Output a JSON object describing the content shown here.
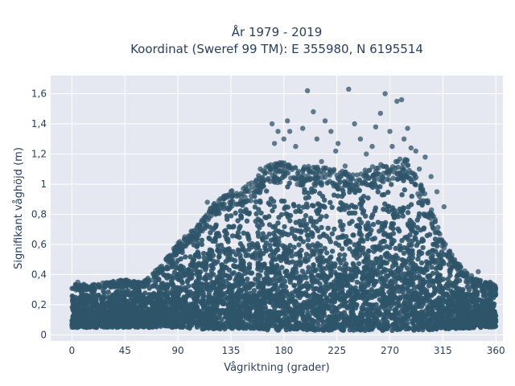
{
  "chart_data": {
    "type": "scatter",
    "title": "År 1979 - 2019",
    "subtitle": "Koordinat (Sweref 99 TM): E 355980, N 6195514",
    "xlabel": "Vågriktning (grader)",
    "ylabel": "Signifikant våghöjd (m)",
    "xlim": [
      -18,
      366
    ],
    "ylim": [
      -0.04,
      1.72
    ],
    "x_ticks": [
      0,
      45,
      90,
      135,
      180,
      225,
      270,
      315,
      360
    ],
    "x_tick_labels": [
      "0",
      "45",
      "90",
      "135",
      "180",
      "225",
      "270",
      "315",
      "360"
    ],
    "y_ticks": [
      0,
      0.2,
      0.4,
      0.6,
      0.8,
      1.0,
      1.2,
      1.4,
      1.6
    ],
    "y_tick_labels": [
      "0",
      "0,2",
      "0,4",
      "0,6",
      "0,8",
      "1",
      "1,2",
      "1,4",
      "1,6"
    ],
    "grid": true,
    "marker_color": "#2f5469",
    "background_color": "#e5e8f0",
    "envelope": {
      "x": [
        0,
        20,
        35,
        45,
        60,
        75,
        90,
        105,
        120,
        135,
        150,
        165,
        180,
        195,
        210,
        225,
        240,
        255,
        270,
        285,
        300,
        315,
        330,
        345,
        360
      ],
      "max": [
        0.33,
        0.33,
        0.35,
        0.36,
        0.34,
        0.45,
        0.6,
        0.7,
        0.85,
        0.94,
        0.97,
        1.1,
        1.13,
        1.1,
        1.1,
        1.08,
        1.05,
        1.1,
        1.13,
        1.16,
        0.92,
        0.62,
        0.45,
        0.36,
        0.33
      ],
      "min": [
        0.05,
        0.05,
        0.05,
        0.05,
        0.05,
        0.05,
        0.05,
        0.04,
        0.04,
        0.04,
        0.04,
        0.03,
        0.03,
        0.03,
        0.03,
        0.03,
        0.03,
        0.03,
        0.03,
        0.03,
        0.03,
        0.04,
        0.04,
        0.05,
        0.05
      ]
    },
    "outliers": [
      {
        "x": 170,
        "y": 1.4
      },
      {
        "x": 172,
        "y": 1.27
      },
      {
        "x": 175,
        "y": 1.35
      },
      {
        "x": 180,
        "y": 1.3
      },
      {
        "x": 183,
        "y": 1.42
      },
      {
        "x": 185,
        "y": 1.35
      },
      {
        "x": 190,
        "y": 1.25
      },
      {
        "x": 196,
        "y": 1.37
      },
      {
        "x": 200,
        "y": 1.62
      },
      {
        "x": 205,
        "y": 1.48
      },
      {
        "x": 208,
        "y": 1.3
      },
      {
        "x": 215,
        "y": 1.42
      },
      {
        "x": 220,
        "y": 1.35
      },
      {
        "x": 224,
        "y": 1.22
      },
      {
        "x": 226,
        "y": 1.27
      },
      {
        "x": 235,
        "y": 1.63
      },
      {
        "x": 240,
        "y": 1.4
      },
      {
        "x": 245,
        "y": 1.3
      },
      {
        "x": 255,
        "y": 1.25
      },
      {
        "x": 258,
        "y": 1.38
      },
      {
        "x": 262,
        "y": 1.47
      },
      {
        "x": 266,
        "y": 1.6
      },
      {
        "x": 270,
        "y": 1.35
      },
      {
        "x": 272,
        "y": 1.25
      },
      {
        "x": 276,
        "y": 1.55
      },
      {
        "x": 280,
        "y": 1.56
      },
      {
        "x": 282,
        "y": 1.3
      },
      {
        "x": 285,
        "y": 1.37
      },
      {
        "x": 288,
        "y": 1.24
      },
      {
        "x": 300,
        "y": 1.18
      },
      {
        "x": 305,
        "y": 1.05
      },
      {
        "x": 310,
        "y": 0.95
      },
      {
        "x": 316,
        "y": 0.85
      },
      {
        "x": 320,
        "y": 0.55
      },
      {
        "x": 325,
        "y": 0.5
      },
      {
        "x": 330,
        "y": 0.45
      },
      {
        "x": 335,
        "y": 0.4
      },
      {
        "x": 340,
        "y": 0.37
      },
      {
        "x": 345,
        "y": 0.42
      },
      {
        "x": 355,
        "y": 0.35
      },
      {
        "x": 100,
        "y": 0.62
      },
      {
        "x": 110,
        "y": 0.75
      },
      {
        "x": 115,
        "y": 0.88
      },
      {
        "x": 125,
        "y": 0.83
      },
      {
        "x": 140,
        "y": 0.92
      },
      {
        "x": 150,
        "y": 1.0
      },
      {
        "x": 160,
        "y": 1.1
      },
      {
        "x": 75,
        "y": 0.45
      },
      {
        "x": 80,
        "y": 0.5
      },
      {
        "x": 40,
        "y": 0.35
      },
      {
        "x": 5,
        "y": 0.35
      },
      {
        "x": 168,
        "y": 1.08
      },
      {
        "x": 212,
        "y": 1.15
      },
      {
        "x": 232,
        "y": 1.12
      },
      {
        "x": 250,
        "y": 1.2
      },
      {
        "x": 292,
        "y": 1.22
      },
      {
        "x": 295,
        "y": 1.1
      }
    ]
  }
}
